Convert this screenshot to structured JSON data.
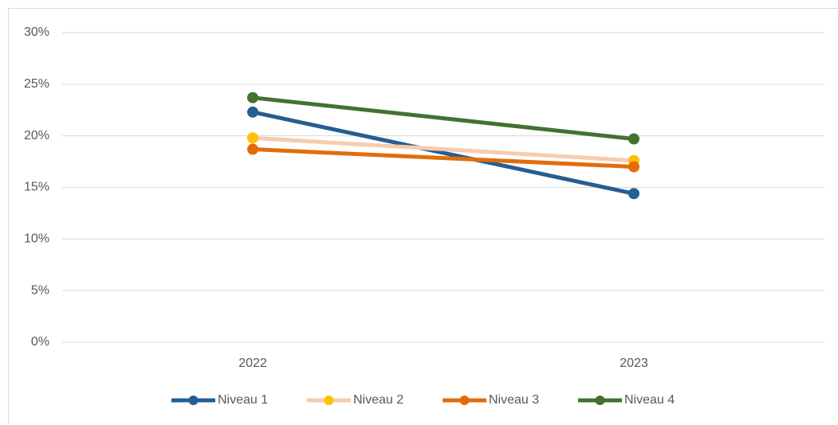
{
  "chart_data": {
    "type": "line",
    "categories": [
      "2022",
      "2023"
    ],
    "series": [
      {
        "name": "Niveau 1",
        "color": "#255e91",
        "marker_color": "#255e91",
        "values": [
          22.3,
          14.4
        ]
      },
      {
        "name": "Niveau 2",
        "color": "#f8cbad",
        "marker_color": "#ffc000",
        "values": [
          19.8,
          17.6
        ]
      },
      {
        "name": "Niveau 3",
        "color": "#e36c0a",
        "marker_color": "#e36c0a",
        "values": [
          18.7,
          17.0
        ]
      },
      {
        "name": "Niveau 4",
        "color": "#43722f",
        "marker_color": "#43722f",
        "values": [
          23.7,
          19.7
        ]
      }
    ],
    "ylim": [
      0,
      30
    ],
    "yticks": [
      {
        "value": 0,
        "label": "0%"
      },
      {
        "value": 5,
        "label": "5%"
      },
      {
        "value": 10,
        "label": "10%"
      },
      {
        "value": 15,
        "label": "15%"
      },
      {
        "value": 20,
        "label": "20%"
      },
      {
        "value": 25,
        "label": "25%"
      },
      {
        "value": 30,
        "label": "30%"
      }
    ],
    "grid": true,
    "legend": "bottom"
  }
}
